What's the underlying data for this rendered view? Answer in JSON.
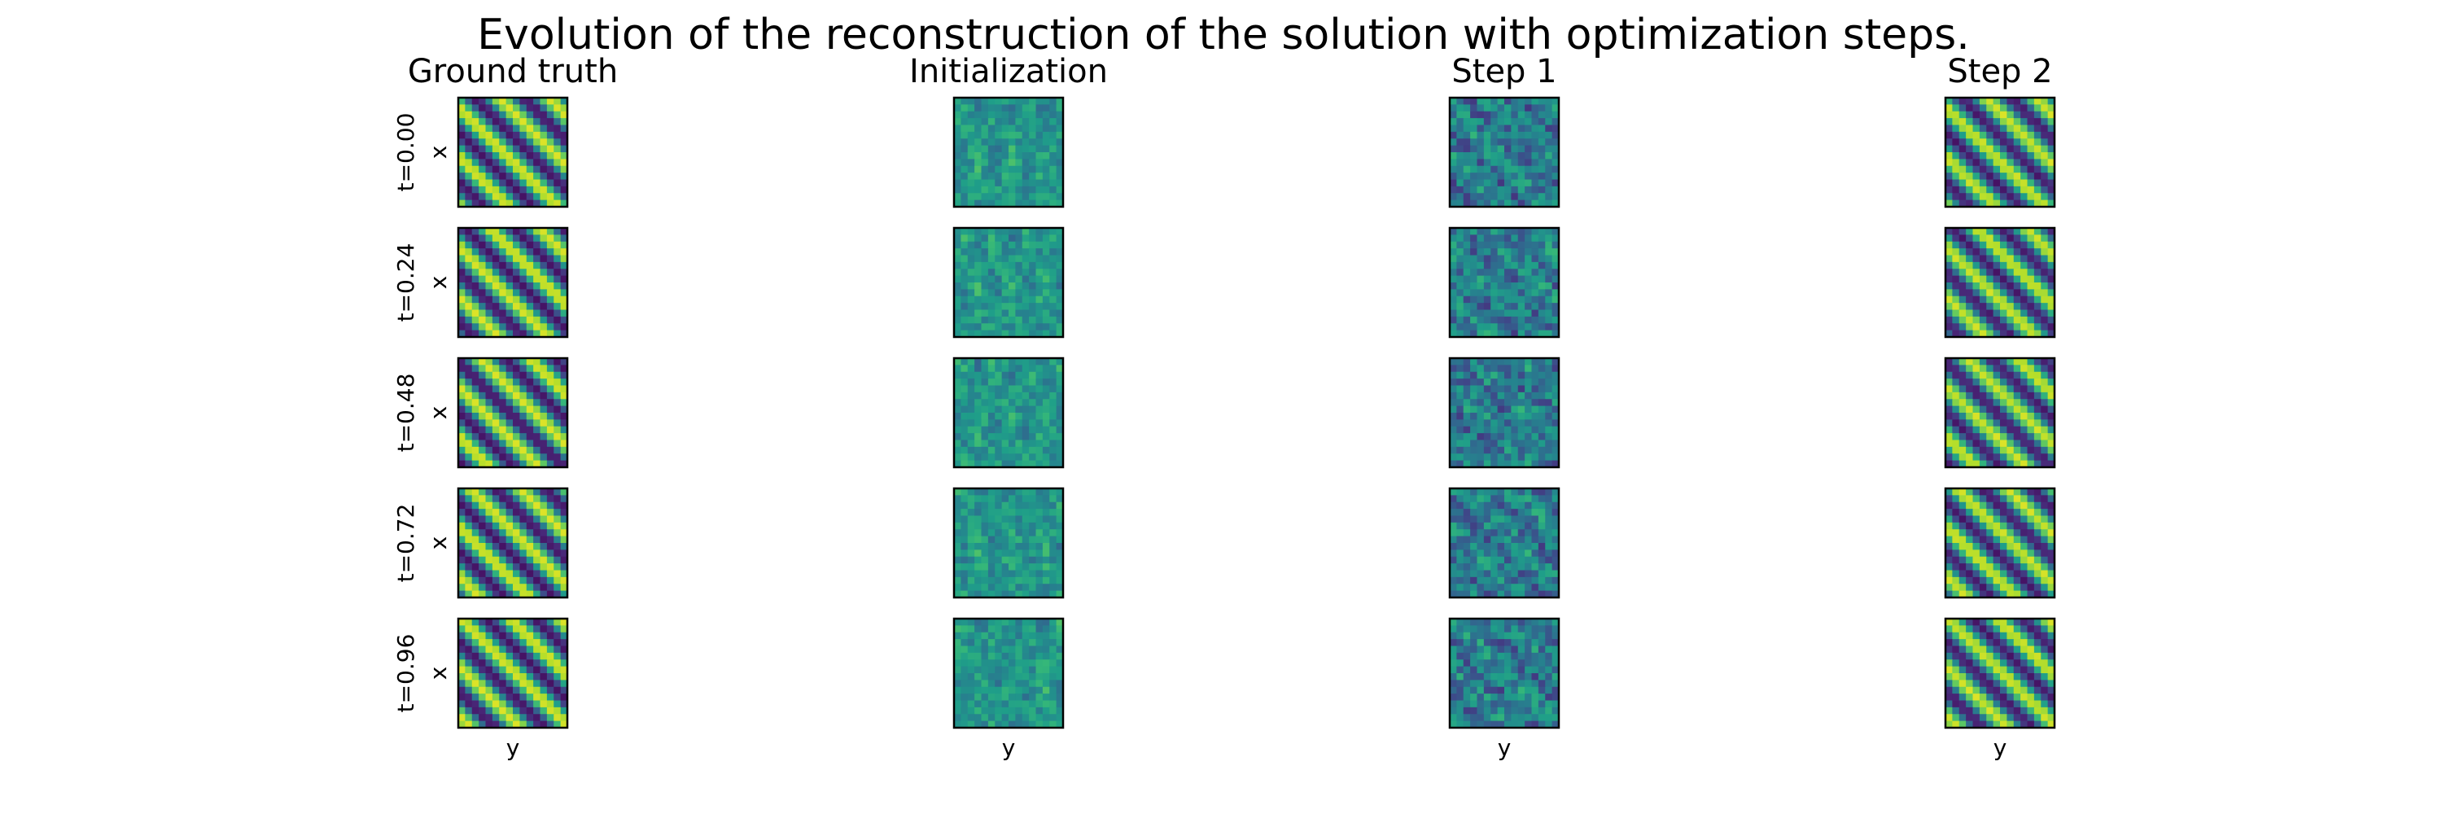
{
  "chart_data": {
    "type": "heatmap",
    "title": "Evolution of the reconstruction of the solution with optimization steps.",
    "columns": [
      "Ground truth",
      "Initialization",
      "Step 1",
      "Step 2"
    ],
    "rows": [
      "t=0.00",
      "t=0.24",
      "t=0.48",
      "t=0.72",
      "t=0.96"
    ],
    "xlabel": "y",
    "ylabel": "x",
    "colormap": "viridis",
    "colors": {
      "viridis": [
        "#440154",
        "#482878",
        "#3e4989",
        "#31688e",
        "#26828e",
        "#1f9e89",
        "#35b779",
        "#6ece58",
        "#b5de2b",
        "#fde725"
      ],
      "border": "#000000",
      "background": "#ffffff"
    },
    "grid": false
  }
}
